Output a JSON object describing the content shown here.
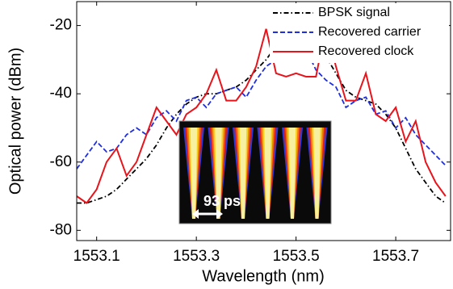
{
  "chart_data": {
    "type": "line",
    "x_label": "Wavelength (nm)",
    "y_label": "Optical power (dBm)",
    "x": [
      1553.06,
      1553.08,
      1553.1,
      1553.12,
      1553.14,
      1553.16,
      1553.18,
      1553.2,
      1553.22,
      1553.24,
      1553.26,
      1553.28,
      1553.3,
      1553.32,
      1553.34,
      1553.36,
      1553.38,
      1553.4,
      1553.42,
      1553.44,
      1553.46,
      1553.48,
      1553.5,
      1553.52,
      1553.54,
      1553.56,
      1553.58,
      1553.6,
      1553.62,
      1553.64,
      1553.66,
      1553.68,
      1553.7,
      1553.72,
      1553.74,
      1553.76,
      1553.78,
      1553.8
    ],
    "series": [
      {
        "name": "BPSK signal",
        "color": "#000000",
        "linestyle": "dashdot",
        "values": [
          -72,
          -72,
          -71,
          -70,
          -68,
          -65,
          -62,
          -59,
          -55,
          -50,
          -46,
          -43,
          -41,
          -40,
          -40,
          -39,
          -38,
          -36,
          -33,
          -30,
          -26,
          -24,
          -22.5,
          -23,
          -25,
          -29,
          -34,
          -39,
          -41,
          -42,
          -43,
          -46,
          -50,
          -56,
          -62,
          -66,
          -70,
          -72
        ]
      },
      {
        "name": "Recovered carrier",
        "color": "#1f2fe0",
        "linestyle": "dashed",
        "values": [
          -62,
          -58,
          -54,
          -57,
          -56,
          -52,
          -50,
          -52,
          -47,
          -45,
          -48,
          -42,
          -41,
          -44,
          -40,
          -39,
          -38,
          -41,
          -36,
          -32,
          -30,
          -26,
          -18,
          -27,
          -33,
          -36,
          -38,
          -44,
          -42,
          -41,
          -46,
          -45,
          -50,
          -47,
          -52,
          -55,
          -58,
          -61
        ]
      },
      {
        "name": "Recovered clock",
        "color": "#e8141c",
        "linestyle": "solid",
        "values": [
          -70,
          -72,
          -68,
          -60,
          -56,
          -64,
          -60,
          -52,
          -44,
          -48,
          -52,
          -46,
          -44,
          -40,
          -33,
          -42,
          -42,
          -38,
          -32,
          -21,
          -34,
          -35,
          -34,
          -35,
          -35,
          -20,
          -32,
          -42,
          -42,
          -34,
          -46,
          -48,
          -44,
          -54,
          -48,
          -60,
          -66,
          -70
        ]
      }
    ],
    "xlim": [
      1553.06,
      1553.81
    ],
    "ylim": [
      -83,
      -13
    ],
    "xticks": [
      1553.1,
      1553.3,
      1553.5,
      1553.7
    ],
    "yticks": [
      -20,
      -40,
      -60,
      -80
    ],
    "legend": "upper right",
    "inset_label": "93 ps"
  }
}
